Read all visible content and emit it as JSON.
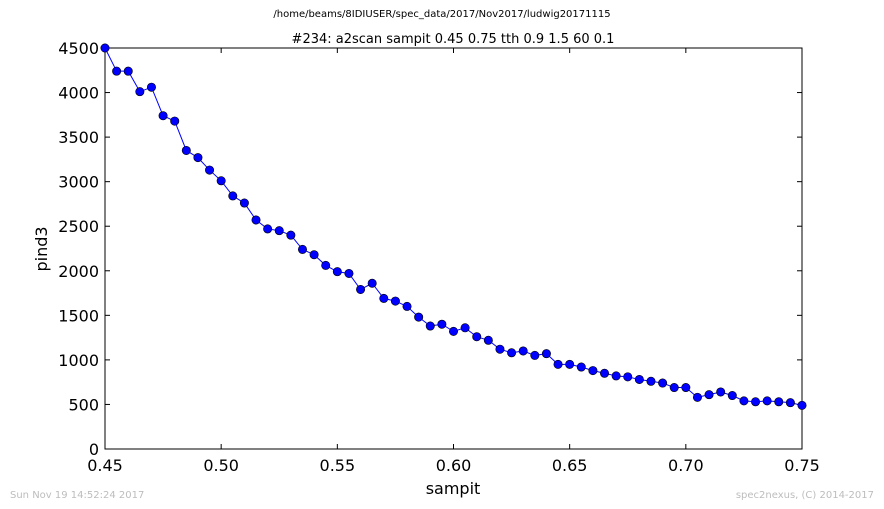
{
  "header": {
    "path": "/home/beams/8IDIUSER/spec_data/2017/Nov2017/ludwig20171115"
  },
  "footer": {
    "timestamp": "Sun Nov 19 14:52:24 2017",
    "credit": "spec2nexus, (C) 2014-2017"
  },
  "chart_data": {
    "type": "line",
    "title": "#234: a2scan  sampit 0.45 0.75  tth 0.9 1.5  60 0.1",
    "xlabel": "sampit",
    "ylabel": "pind3",
    "xlim": [
      0.45,
      0.75
    ],
    "ylim": [
      0,
      4500
    ],
    "xticks": [
      "0.45",
      "0.50",
      "0.55",
      "0.60",
      "0.65",
      "0.70",
      "0.75"
    ],
    "yticks": [
      "0",
      "500",
      "1000",
      "1500",
      "2000",
      "2500",
      "3000",
      "3500",
      "4000",
      "4500"
    ],
    "grid": false,
    "color": "#0000ff",
    "series": [
      {
        "x": [
          0.45,
          0.455,
          0.46,
          0.465,
          0.47,
          0.475,
          0.48,
          0.485,
          0.49,
          0.495,
          0.5,
          0.505,
          0.51,
          0.515,
          0.52,
          0.525,
          0.53,
          0.535,
          0.54,
          0.545,
          0.55,
          0.555,
          0.56,
          0.565,
          0.57,
          0.575,
          0.58,
          0.585,
          0.59,
          0.595,
          0.6,
          0.605,
          0.61,
          0.615,
          0.62,
          0.625,
          0.63,
          0.635,
          0.64,
          0.645,
          0.65,
          0.655,
          0.66,
          0.665,
          0.67,
          0.675,
          0.68,
          0.685,
          0.69,
          0.695,
          0.7,
          0.705,
          0.71,
          0.715,
          0.72,
          0.725,
          0.73,
          0.735,
          0.74,
          0.745,
          0.75
        ],
        "y": [
          4500,
          4240,
          4240,
          4010,
          4060,
          3740,
          3680,
          3350,
          3270,
          3130,
          3010,
          2840,
          2760,
          2570,
          2470,
          2450,
          2400,
          2240,
          2180,
          2060,
          1990,
          1970,
          1790,
          1860,
          1690,
          1660,
          1600,
          1480,
          1380,
          1400,
          1320,
          1360,
          1260,
          1220,
          1120,
          1080,
          1100,
          1050,
          1070,
          950,
          950,
          920,
          880,
          850,
          820,
          810,
          780,
          760,
          740,
          690,
          690,
          580,
          610,
          640,
          600,
          540,
          530,
          540,
          530,
          520,
          490
        ]
      }
    ]
  }
}
